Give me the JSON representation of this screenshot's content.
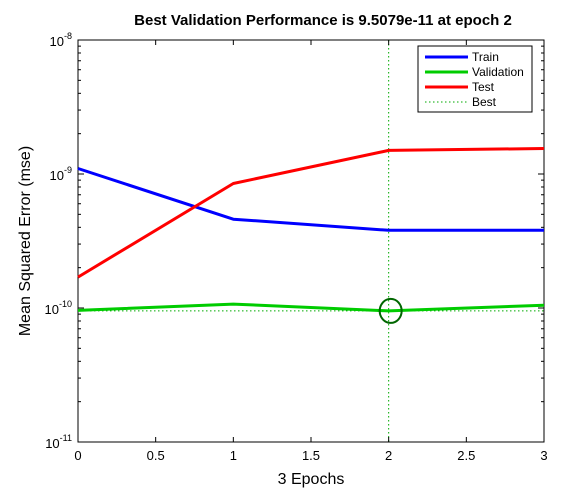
{
  "chart_data": {
    "type": "line",
    "title": "Best Validation Performance is 9.5079e-11 at epoch 2",
    "xlabel": "3 Epochs",
    "ylabel": "Mean Squared Error  (mse)",
    "xlim": [
      0,
      3
    ],
    "ylim": [
      1e-11,
      1e-08
    ],
    "yscale": "log",
    "x_ticks": [
      "0",
      "0.5",
      "1",
      "1.5",
      "2",
      "2.5",
      "3"
    ],
    "y_tick_base": "10",
    "y_tick_exponents": [
      "-8",
      "-9",
      "-10",
      "-11"
    ],
    "x": [
      0,
      1,
      2,
      3
    ],
    "series": [
      {
        "name": "Train",
        "color": "#0000ff",
        "values": [
          1.1e-09,
          4.6e-10,
          3.8e-10,
          3.8e-10
        ]
      },
      {
        "name": "Validation",
        "color": "#00cc00",
        "values": [
          9.6e-11,
          1.07e-10,
          9.5079e-11,
          1.05e-10
        ]
      },
      {
        "name": "Test",
        "color": "#ff0000",
        "values": [
          1.7e-10,
          8.5e-10,
          1.5e-09,
          1.55e-09
        ]
      }
    ],
    "best": {
      "name": "Best",
      "epoch": 2,
      "value": 9.5079e-11,
      "color": "#00aa00"
    },
    "legend_position": "top-right",
    "grid": false
  }
}
